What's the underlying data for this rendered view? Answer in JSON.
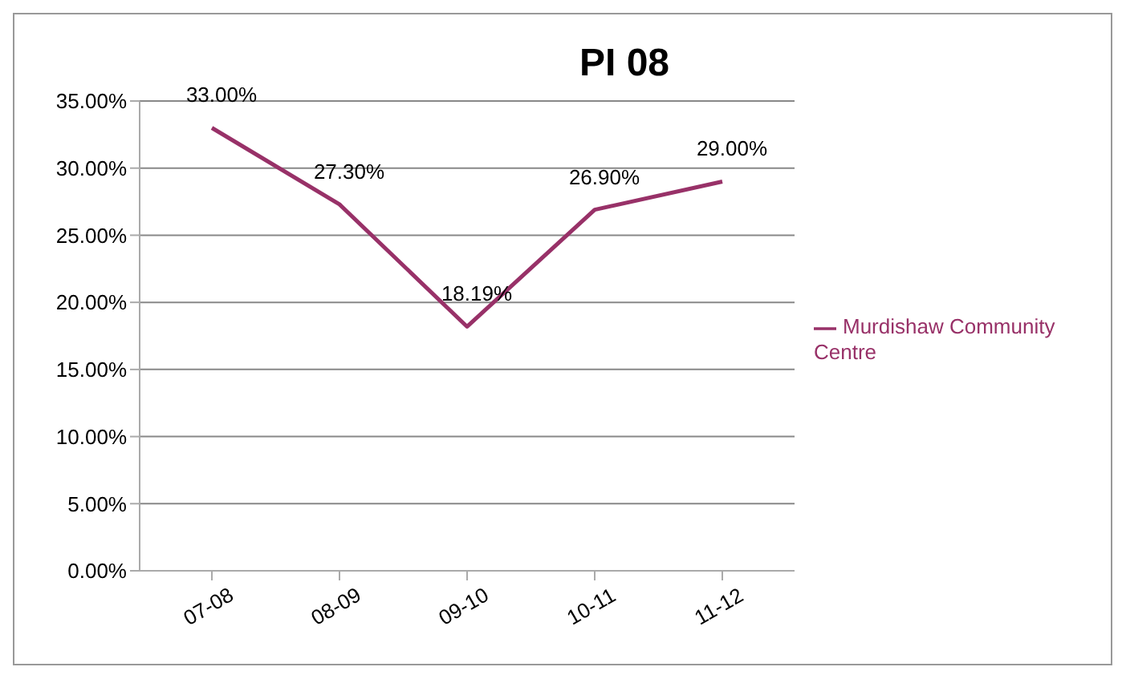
{
  "chart_data": {
    "type": "line",
    "title": "PI 08",
    "categories": [
      "07-08",
      "08-09",
      "09-10",
      "10-11",
      "11-12"
    ],
    "series": [
      {
        "name": "Murdishaw Community Centre",
        "color": "#983168",
        "values": [
          33.0,
          27.3,
          18.19,
          26.9,
          29.0
        ],
        "value_labels": [
          "33.00%",
          "27.30%",
          "18.19%",
          "26.90%",
          "29.00%"
        ]
      }
    ],
    "ylim": [
      0,
      35
    ],
    "yticks": [
      {
        "value": 0,
        "label": "0.00%"
      },
      {
        "value": 5,
        "label": "5.00%"
      },
      {
        "value": 10,
        "label": "10.00%"
      },
      {
        "value": 15,
        "label": "15.00%"
      },
      {
        "value": 20,
        "label": "20.00%"
      },
      {
        "value": 25,
        "label": "25.00%"
      },
      {
        "value": 30,
        "label": "30.00%"
      },
      {
        "value": 35,
        "label": "35.00%"
      }
    ],
    "grid": "y",
    "legend": "right",
    "marker": "none",
    "line_style": "solid"
  }
}
